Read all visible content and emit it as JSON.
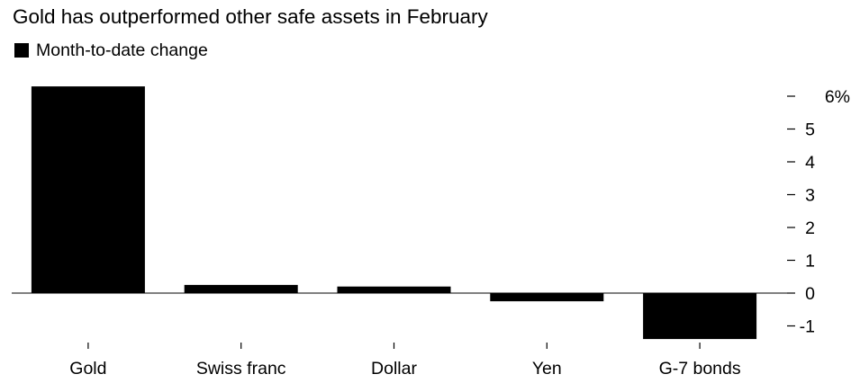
{
  "chart_data": {
    "type": "bar",
    "title": "Gold has outperformed other safe assets in February",
    "categories": [
      "Gold",
      "Swiss franc",
      "Dollar",
      "Yen",
      "G-7 bonds"
    ],
    "series": [
      {
        "name": "Month-to-date change",
        "values": [
          6.3,
          0.25,
          0.2,
          -0.25,
          -1.4
        ],
        "color": "#000000"
      }
    ],
    "y_ticks": [
      -1,
      0,
      1,
      2,
      3,
      4,
      5,
      6
    ],
    "y_tick_labels": [
      "-1",
      "0",
      "1",
      "2",
      "3",
      "4",
      "5",
      "6%"
    ],
    "ylim": [
      -1.4,
      6.3
    ],
    "y_axis_position": "right",
    "grid": false,
    "legend_position": "top-left",
    "xlabel": "",
    "ylabel": ""
  }
}
